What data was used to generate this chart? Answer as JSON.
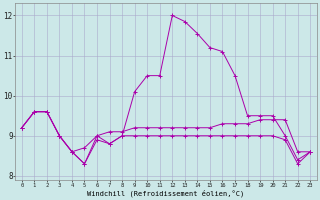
{
  "xlabel": "Windchill (Refroidissement éolien,°C)",
  "bg_color": "#cce8e8",
  "grid_color": "#aaaacc",
  "line_color": "#aa00aa",
  "ylim": [
    7.9,
    12.3
  ],
  "xlim": [
    -0.5,
    23.5
  ],
  "hours": [
    0,
    1,
    2,
    3,
    4,
    5,
    6,
    7,
    8,
    9,
    10,
    11,
    12,
    13,
    14,
    15,
    16,
    17,
    18,
    19,
    20,
    21,
    22,
    23
  ],
  "line_peak": [
    9.2,
    9.6,
    9.6,
    9.0,
    8.6,
    8.3,
    9.0,
    8.8,
    9.0,
    10.1,
    10.5,
    10.5,
    12.0,
    11.85,
    11.55,
    11.2,
    11.1,
    10.5,
    9.5,
    9.5,
    9.5,
    9.0,
    8.4,
    8.6
  ],
  "line_mid": [
    9.2,
    9.6,
    9.6,
    9.0,
    8.6,
    8.7,
    9.0,
    9.1,
    9.1,
    9.2,
    9.2,
    9.2,
    9.2,
    9.2,
    9.2,
    9.2,
    9.3,
    9.3,
    9.3,
    9.4,
    9.4,
    9.4,
    8.6,
    8.6
  ],
  "line_low": [
    9.2,
    9.6,
    9.6,
    9.0,
    8.6,
    8.3,
    8.9,
    8.8,
    9.0,
    9.0,
    9.0,
    9.0,
    9.0,
    9.0,
    9.0,
    9.0,
    9.0,
    9.0,
    9.0,
    9.0,
    9.0,
    8.9,
    8.3,
    8.6
  ],
  "yticks": [
    8,
    9,
    10,
    11,
    12
  ],
  "xticks": [
    0,
    1,
    2,
    3,
    4,
    5,
    6,
    7,
    8,
    9,
    10,
    11,
    12,
    13,
    14,
    15,
    16,
    17,
    18,
    19,
    20,
    21,
    22,
    23
  ]
}
